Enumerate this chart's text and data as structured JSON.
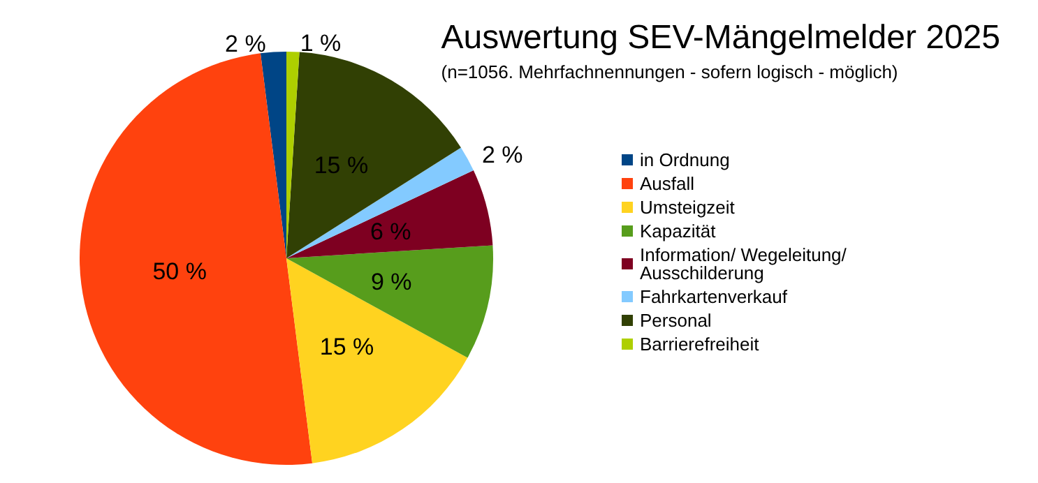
{
  "chart_data": {
    "type": "pie",
    "title": "Auswertung SEV-Mängelmelder 2025",
    "subtitle": "(n=1056. Mehrfachnennungen - sofern logisch - möglich)",
    "categories": [
      "in Ordnung",
      "Ausfall",
      "Umsteigzeit",
      "Kapazität",
      "Information/ Wegeleitung/ Ausschilderung",
      "Fahrkartenverkauf",
      "Personal",
      "Barrierefreiheit"
    ],
    "values": [
      2,
      50,
      15,
      9,
      6,
      2,
      15,
      1
    ],
    "colors": [
      "#004586",
      "#ff420e",
      "#ffd320",
      "#579d1c",
      "#7e0021",
      "#83caff",
      "#314004",
      "#aecf00"
    ],
    "value_labels": [
      "2 %",
      "50 %",
      "15 %",
      "9 %",
      "6 %",
      "2 %",
      "15 %",
      "1 %"
    ],
    "legend": "right"
  }
}
